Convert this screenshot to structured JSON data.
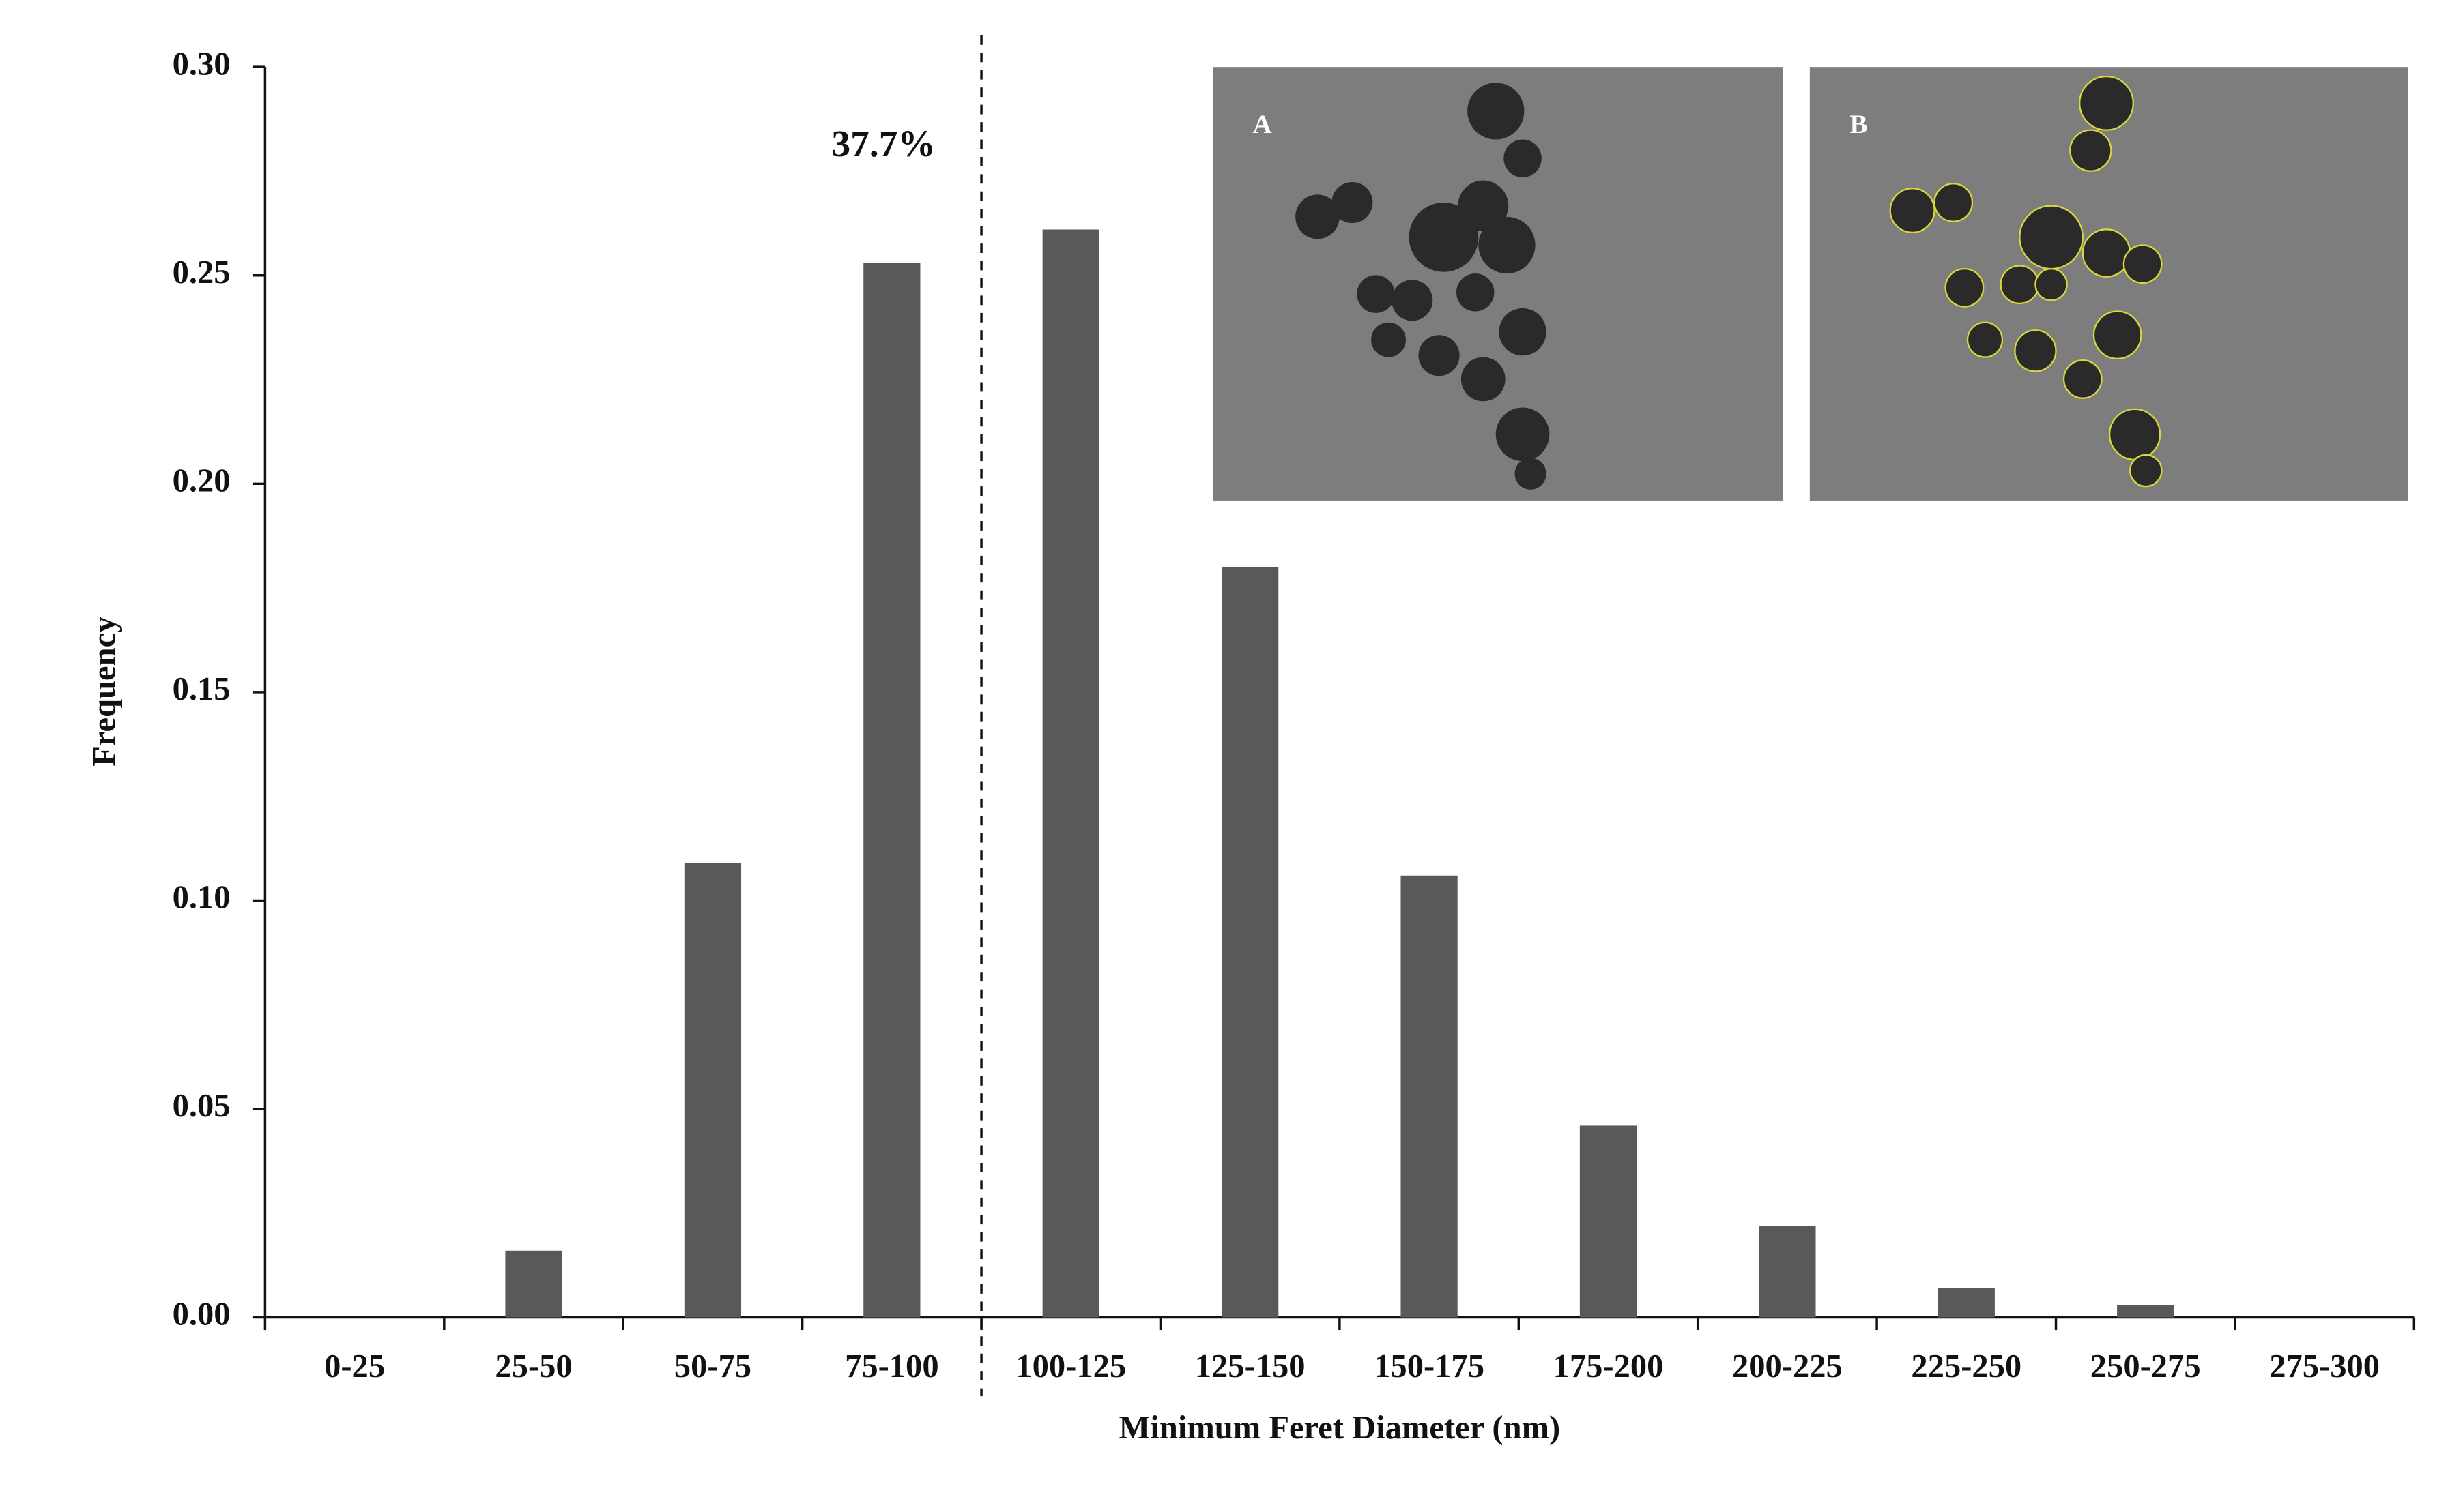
{
  "chart_data": {
    "type": "bar",
    "x_label": "Minimum  Feret Diameter (nm)",
    "y_label": "Frequency",
    "categories": [
      "0-25",
      "25-50",
      "50-75",
      "75-100",
      "100-125",
      "125-150",
      "150-175",
      "175-200",
      "200-225",
      "225-250",
      "250-275",
      "275-300"
    ],
    "values": [
      0,
      0.016,
      0.109,
      0.253,
      0.261,
      0.18,
      0.106,
      0.046,
      0.022,
      0.007,
      0.003,
      0
    ],
    "color": "#595959",
    "ylim": [
      0,
      0.3
    ],
    "yticks": [
      {
        "value": 0,
        "label": "0.00"
      },
      {
        "value": 0.05,
        "label": "0.05"
      },
      {
        "value": 0.1,
        "label": "0.10"
      },
      {
        "value": 0.15,
        "label": "0.15"
      },
      {
        "value": 0.2,
        "label": "0.20"
      },
      {
        "value": 0.25,
        "label": "0.25"
      },
      {
        "value": 0.3,
        "label": "0.30"
      }
    ],
    "annotation": "37.7%",
    "inset_labels": [
      "A",
      "B"
    ]
  }
}
